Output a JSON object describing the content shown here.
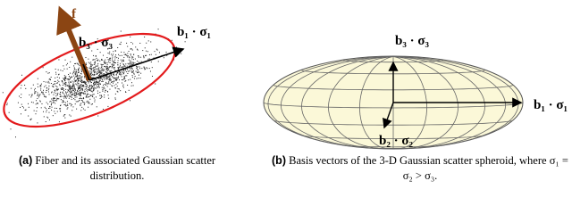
{
  "panels": [
    {
      "labels": {
        "fiber": "f",
        "b3": "b₃ · σ₃",
        "b1": "b₁ · σ₁"
      },
      "caption": {
        "label": "(a)",
        "text": "Fiber and its associated Gaussian scatter distribution."
      }
    },
    {
      "labels": {
        "b3": "b₃ · σ₃",
        "b1": "b₁ · σ₁",
        "b2": "b₂ · σ₂"
      },
      "caption": {
        "label": "(b)",
        "text": "Basis vectors of the 3-D Gaussian scatter spheroid, where σ₁ = σ₂ > σ₃."
      }
    }
  ]
}
